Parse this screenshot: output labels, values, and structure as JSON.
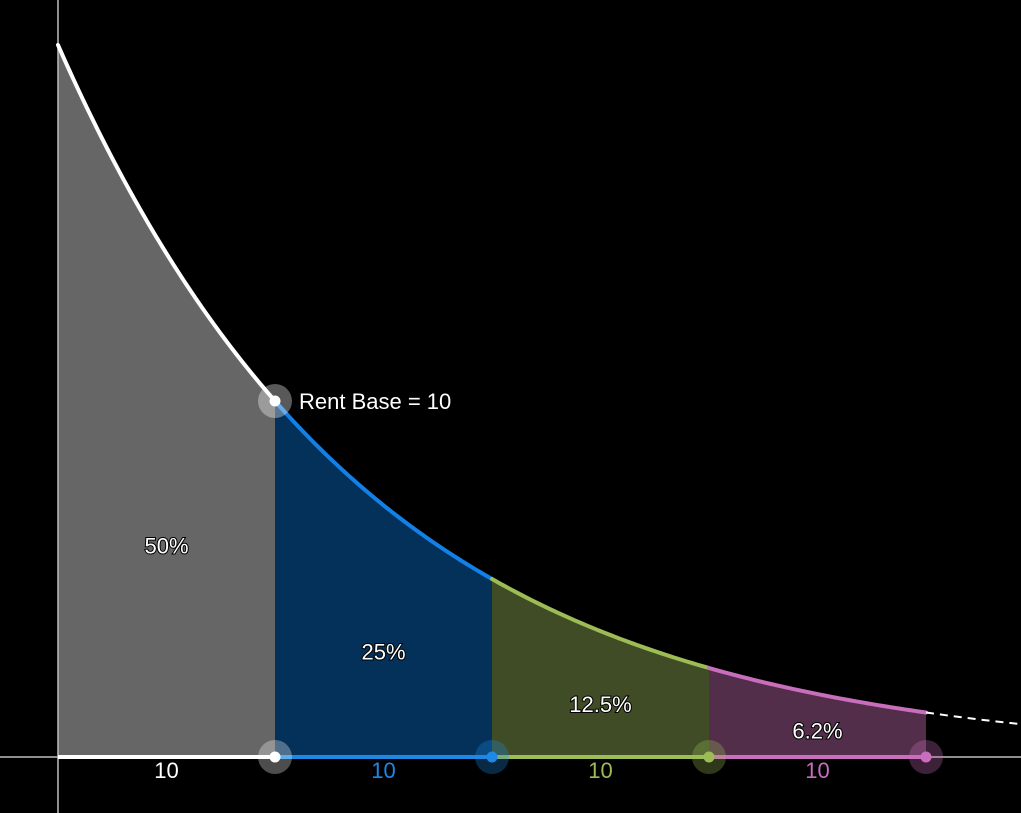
{
  "chart_data": {
    "type": "area",
    "title": "",
    "xlabel": "",
    "ylabel": "",
    "x_range": [
      0,
      46
    ],
    "y_range": [
      0,
      83
    ],
    "curve": {
      "initial_value": 80,
      "halving_width": 10,
      "dashed_tail_to": 46
    },
    "annotation": {
      "text": "Rent Base = 10",
      "x": 10,
      "y": 40
    },
    "segments": [
      {
        "x_start": 0,
        "x_end": 10,
        "percent_label": "50%",
        "width_label": "10",
        "fill": "#666666",
        "line": "#ffffff",
        "width_color": "#ffffff"
      },
      {
        "x_start": 10,
        "x_end": 20,
        "percent_label": "25%",
        "width_label": "10",
        "fill": "#03315a",
        "line": "#1280e6",
        "width_color": "#1e88e5"
      },
      {
        "x_start": 20,
        "x_end": 30,
        "percent_label": "12.5%",
        "width_label": "10",
        "fill": "#404c26",
        "line": "#9dbc55",
        "width_color": "#9dbc55"
      },
      {
        "x_start": 30,
        "x_end": 40,
        "percent_label": "6.2%",
        "width_label": "10",
        "fill": "#522e4a",
        "line": "#c96dbd",
        "width_color": "#c96dbd"
      }
    ],
    "colors": {
      "background": "#000000",
      "axis": "#bdbdbd",
      "tail": "#ffffff"
    }
  }
}
